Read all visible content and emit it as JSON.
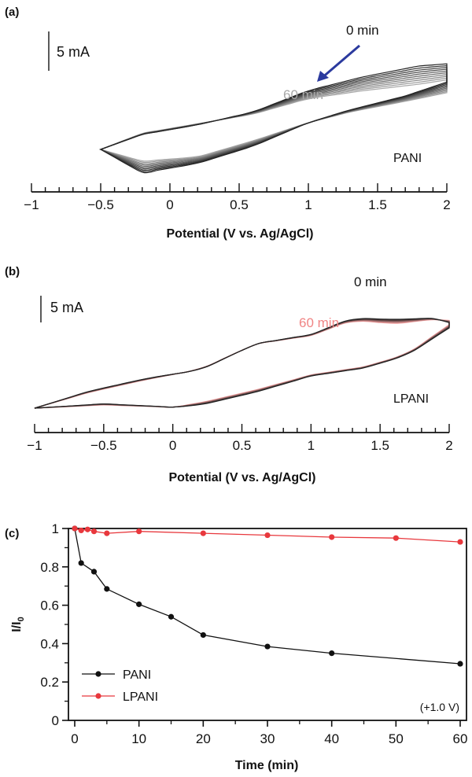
{
  "chart_data": [
    {
      "panel": "(a)",
      "type": "line",
      "xlabel": "Potential (V vs. Ag/AgCl)",
      "xlim": [
        -1,
        2
      ],
      "xticks": [
        "−1",
        "−0.5",
        "0",
        "0.5",
        "1",
        "1.5",
        "2"
      ],
      "xtick_values": [
        -1,
        -0.5,
        0,
        0.5,
        1,
        1.5,
        2
      ],
      "scale_bar_label": "5 mA",
      "scale_bar_mA": 5,
      "sample_label": "PANI",
      "time_start_label": "0 min",
      "time_end_label": "60 min",
      "sweep_range_V": [
        -0.5,
        2.0
      ],
      "cycle_count": 10,
      "color_start": "#222222",
      "color_end": "#a8a8a8",
      "arrow_color": "#2b3a9e",
      "upper_mA_first": [
        [
          -0.5,
          0.0
        ],
        [
          -0.2,
          2.8
        ],
        [
          0.2,
          4.6
        ],
        [
          0.6,
          7.0
        ],
        [
          1.0,
          11.0
        ],
        [
          1.4,
          13.6
        ],
        [
          1.8,
          15.6
        ],
        [
          2.0,
          16.0
        ]
      ],
      "lower_mA_first": [
        [
          2.0,
          12.6
        ],
        [
          1.7,
          10.0
        ],
        [
          1.3,
          7.4
        ],
        [
          1.0,
          5.0
        ],
        [
          0.6,
          0.6
        ],
        [
          0.2,
          -2.6
        ],
        [
          -0.2,
          -4.4
        ],
        [
          -0.5,
          0.0
        ]
      ],
      "upper_mA_last": [
        [
          -0.5,
          0.0
        ],
        [
          -0.2,
          3.0
        ],
        [
          0.2,
          4.8
        ],
        [
          0.6,
          6.6
        ],
        [
          1.0,
          9.5
        ],
        [
          1.4,
          11.0
        ],
        [
          1.8,
          12.2
        ],
        [
          2.0,
          13.0
        ]
      ],
      "lower_mA_last": [
        [
          2.0,
          10.6
        ],
        [
          1.7,
          9.0
        ],
        [
          1.3,
          7.0
        ],
        [
          1.0,
          5.0
        ],
        [
          0.6,
          1.6
        ],
        [
          0.2,
          -1.4
        ],
        [
          -0.2,
          -2.2
        ],
        [
          -0.5,
          0.0
        ]
      ]
    },
    {
      "panel": "(b)",
      "type": "line",
      "xlabel": "Potential (V vs. Ag/AgCl)",
      "xlim": [
        -1,
        2
      ],
      "xticks": [
        "−1",
        "−0.5",
        "0",
        "0.5",
        "1",
        "1.5",
        "2"
      ],
      "xtick_values": [
        -1,
        -0.5,
        0,
        0.5,
        1,
        1.5,
        2
      ],
      "scale_bar_label": "5 mA",
      "scale_bar_mA": 5,
      "sample_label": "LPANI",
      "time_start_label": "0 min",
      "time_end_label": "60 min",
      "sweep_range_V": [
        -1.0,
        2.0
      ],
      "cycle_count": 8,
      "color_start": "#222222",
      "color_end": "#f4a0a0",
      "upper_mA_first": [
        [
          -1.0,
          0.0
        ],
        [
          -0.6,
          3.2
        ],
        [
          -0.2,
          5.5
        ],
        [
          0.2,
          7.2
        ],
        [
          0.6,
          12.0
        ],
        [
          1.0,
          13.8
        ],
        [
          1.3,
          16.8
        ],
        [
          1.6,
          16.6
        ],
        [
          1.9,
          16.8
        ],
        [
          2.0,
          16.0
        ]
      ],
      "lower_mA_first": [
        [
          2.0,
          15.0
        ],
        [
          1.7,
          10.0
        ],
        [
          1.4,
          7.6
        ],
        [
          1.0,
          6.0
        ],
        [
          0.6,
          3.0
        ],
        [
          0.2,
          0.6
        ],
        [
          0.0,
          0.2
        ],
        [
          -0.5,
          0.8
        ],
        [
          -1.0,
          0.0
        ]
      ],
      "upper_mA_last": [
        [
          -1.0,
          0.0
        ],
        [
          -0.6,
          3.0
        ],
        [
          -0.2,
          5.3
        ],
        [
          0.2,
          7.3
        ],
        [
          0.6,
          12.0
        ],
        [
          1.0,
          13.6
        ],
        [
          1.3,
          16.4
        ],
        [
          1.6,
          15.8
        ],
        [
          1.9,
          16.6
        ],
        [
          2.0,
          16.4
        ]
      ],
      "lower_mA_last": [
        [
          2.0,
          15.6
        ],
        [
          1.7,
          10.2
        ],
        [
          1.4,
          7.8
        ],
        [
          1.0,
          6.2
        ],
        [
          0.6,
          3.4
        ],
        [
          0.2,
          1.0
        ],
        [
          0.0,
          0.2
        ],
        [
          -0.5,
          0.6
        ],
        [
          -1.0,
          0.0
        ]
      ]
    },
    {
      "panel": "(c)",
      "type": "line",
      "xlabel": "Time (min)",
      "ylabel_main": "I/I",
      "ylabel_sub": "0",
      "xlim": [
        0,
        60
      ],
      "ylim": [
        0,
        1
      ],
      "xticks": [
        0,
        10,
        20,
        30,
        40,
        50,
        60
      ],
      "yticks": [
        0,
        0.2,
        0.4,
        0.6,
        0.8,
        1
      ],
      "ytick_labels": [
        "0",
        "0.2",
        "0.4",
        "0.6",
        "0.8",
        "1"
      ],
      "annotation": "(+1.0 V)",
      "legend_position": "bottom-left",
      "series": [
        {
          "name": "PANI",
          "color": "#111111",
          "x": [
            0,
            1,
            3,
            5,
            10,
            15,
            20,
            30,
            40,
            60
          ],
          "y": [
            1.0,
            0.82,
            0.775,
            0.685,
            0.605,
            0.54,
            0.445,
            0.385,
            0.35,
            0.295
          ]
        },
        {
          "name": "LPANI",
          "color": "#e8383d",
          "x": [
            0,
            1,
            2,
            3,
            5,
            10,
            20,
            30,
            40,
            50,
            60
          ],
          "y": [
            1.0,
            0.99,
            0.995,
            0.985,
            0.975,
            0.985,
            0.975,
            0.965,
            0.955,
            0.95,
            0.93
          ]
        }
      ]
    }
  ]
}
